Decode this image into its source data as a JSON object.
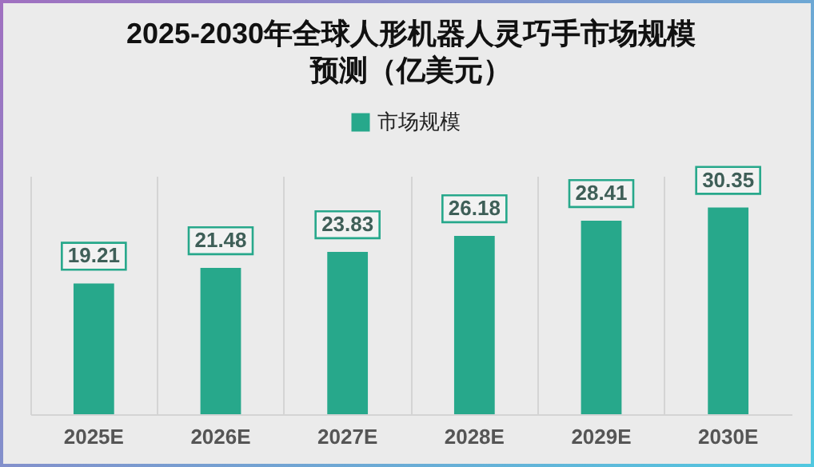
{
  "chart_data": {
    "type": "bar",
    "title": "2025-2030年全球人形机器人灵巧手市场规模预测（亿美元）",
    "categories": [
      "2025E",
      "2026E",
      "2027E",
      "2028E",
      "2029E",
      "2030E"
    ],
    "series": [
      {
        "name": "市场规模",
        "color": "#27a88b",
        "values": [
          19.21,
          21.48,
          23.83,
          26.18,
          28.41,
          30.35
        ]
      }
    ],
    "data_labels": true,
    "grid": "x",
    "legend": "top",
    "tick_labels": "x"
  }
}
